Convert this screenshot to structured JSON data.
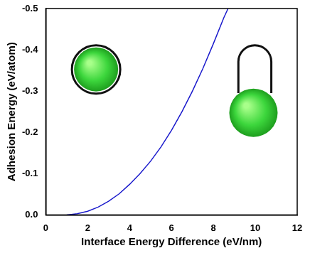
{
  "chart_data": {
    "type": "line",
    "x_label": "Interface Energy Difference (eV/nm)",
    "y_label": "Adhesion Energy (eV/atom)",
    "series": [
      {
        "name": "Adhesion Energy",
        "color": "#1a1acc",
        "x": [
          1,
          1.5,
          2,
          2.5,
          3,
          3.5,
          4,
          4.5,
          5,
          5.5,
          6,
          6.5,
          7,
          7.5,
          8,
          8.5,
          8.7
        ],
        "values": [
          0,
          -0.003,
          -0.009,
          -0.019,
          -0.033,
          -0.051,
          -0.074,
          -0.1,
          -0.13,
          -0.165,
          -0.205,
          -0.25,
          -0.3,
          -0.355,
          -0.415,
          -0.478,
          -0.5
        ]
      }
    ],
    "xlim": [
      0,
      12
    ],
    "xticks": [
      0,
      2,
      4,
      6,
      8,
      10,
      12
    ],
    "ylim": [
      0,
      -0.5
    ],
    "yticks": [
      {
        "value": 0,
        "label": "0.0"
      },
      -0.1,
      -0.2,
      -0.3,
      -0.4,
      -0.5
    ],
    "grid": false
  }
}
